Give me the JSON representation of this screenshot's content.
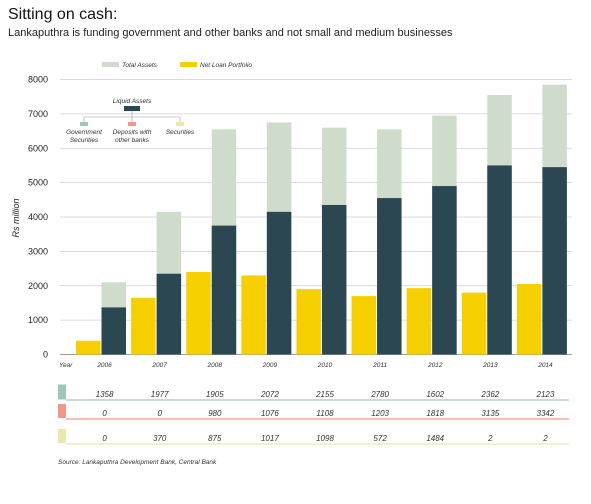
{
  "title": "Sitting on cash:",
  "subtitle": "Lankaputhra is funding government and other banks and not small and medium businesses",
  "source": "Source: Lankaputhra Development Bank, Central Bank",
  "colors": {
    "total_assets": "#cfdccc",
    "net_loan": "#f6cf00",
    "liquid": "#2b4752",
    "gov": "#9fc6bb",
    "dep": "#f2978a",
    "sec": "#ebe7ad"
  },
  "chart_data": {
    "type": "bar",
    "ylabel": "Rs million",
    "ylim": [
      0,
      8000
    ],
    "yticks": [
      "0",
      "1000",
      "2000",
      "3000",
      "4000",
      "5000",
      "6000",
      "7000",
      "8000"
    ],
    "x_axis_label": "Year",
    "categories": [
      "2006",
      "2007",
      "2008",
      "2009",
      "2010",
      "2011",
      "2012",
      "2013",
      "2014"
    ],
    "series": [
      {
        "name": "Total Assets",
        "values": [
          2100,
          4150,
          6550,
          6750,
          6600,
          6550,
          6950,
          7550,
          7850
        ]
      },
      {
        "name": "Net Loan Portfolio",
        "values": [
          400,
          1650,
          2400,
          2300,
          1900,
          1700,
          1930,
          1800,
          2050
        ]
      },
      {
        "name": "Liquid Assets",
        "values": [
          1370,
          2350,
          3750,
          4150,
          4350,
          4550,
          4900,
          5500,
          5450
        ]
      }
    ],
    "legend": {
      "total_assets": "Total Assets",
      "net_loan": "Net Loan Portfolio"
    },
    "liquid_breakdown": {
      "title": "Liquid Assets",
      "items": [
        {
          "key": "gov",
          "label1": "Government",
          "label2": "Securities"
        },
        {
          "key": "dep",
          "label1": "Deposits with",
          "label2": "other banks"
        },
        {
          "key": "sec",
          "label1": "Securities",
          "label2": ""
        }
      ]
    },
    "table": [
      {
        "key": "gov",
        "values": [
          "1358",
          "1977",
          "1905",
          "2072",
          "2155",
          "2780",
          "1602",
          "2362",
          "2123"
        ]
      },
      {
        "key": "dep",
        "values": [
          "0",
          "0",
          "980",
          "1076",
          "1108",
          "1203",
          "1818",
          "3135",
          "3342"
        ]
      },
      {
        "key": "sec",
        "values": [
          "0",
          "370",
          "875",
          "1017",
          "1098",
          "572",
          "1484",
          "2",
          "2"
        ]
      }
    ]
  }
}
